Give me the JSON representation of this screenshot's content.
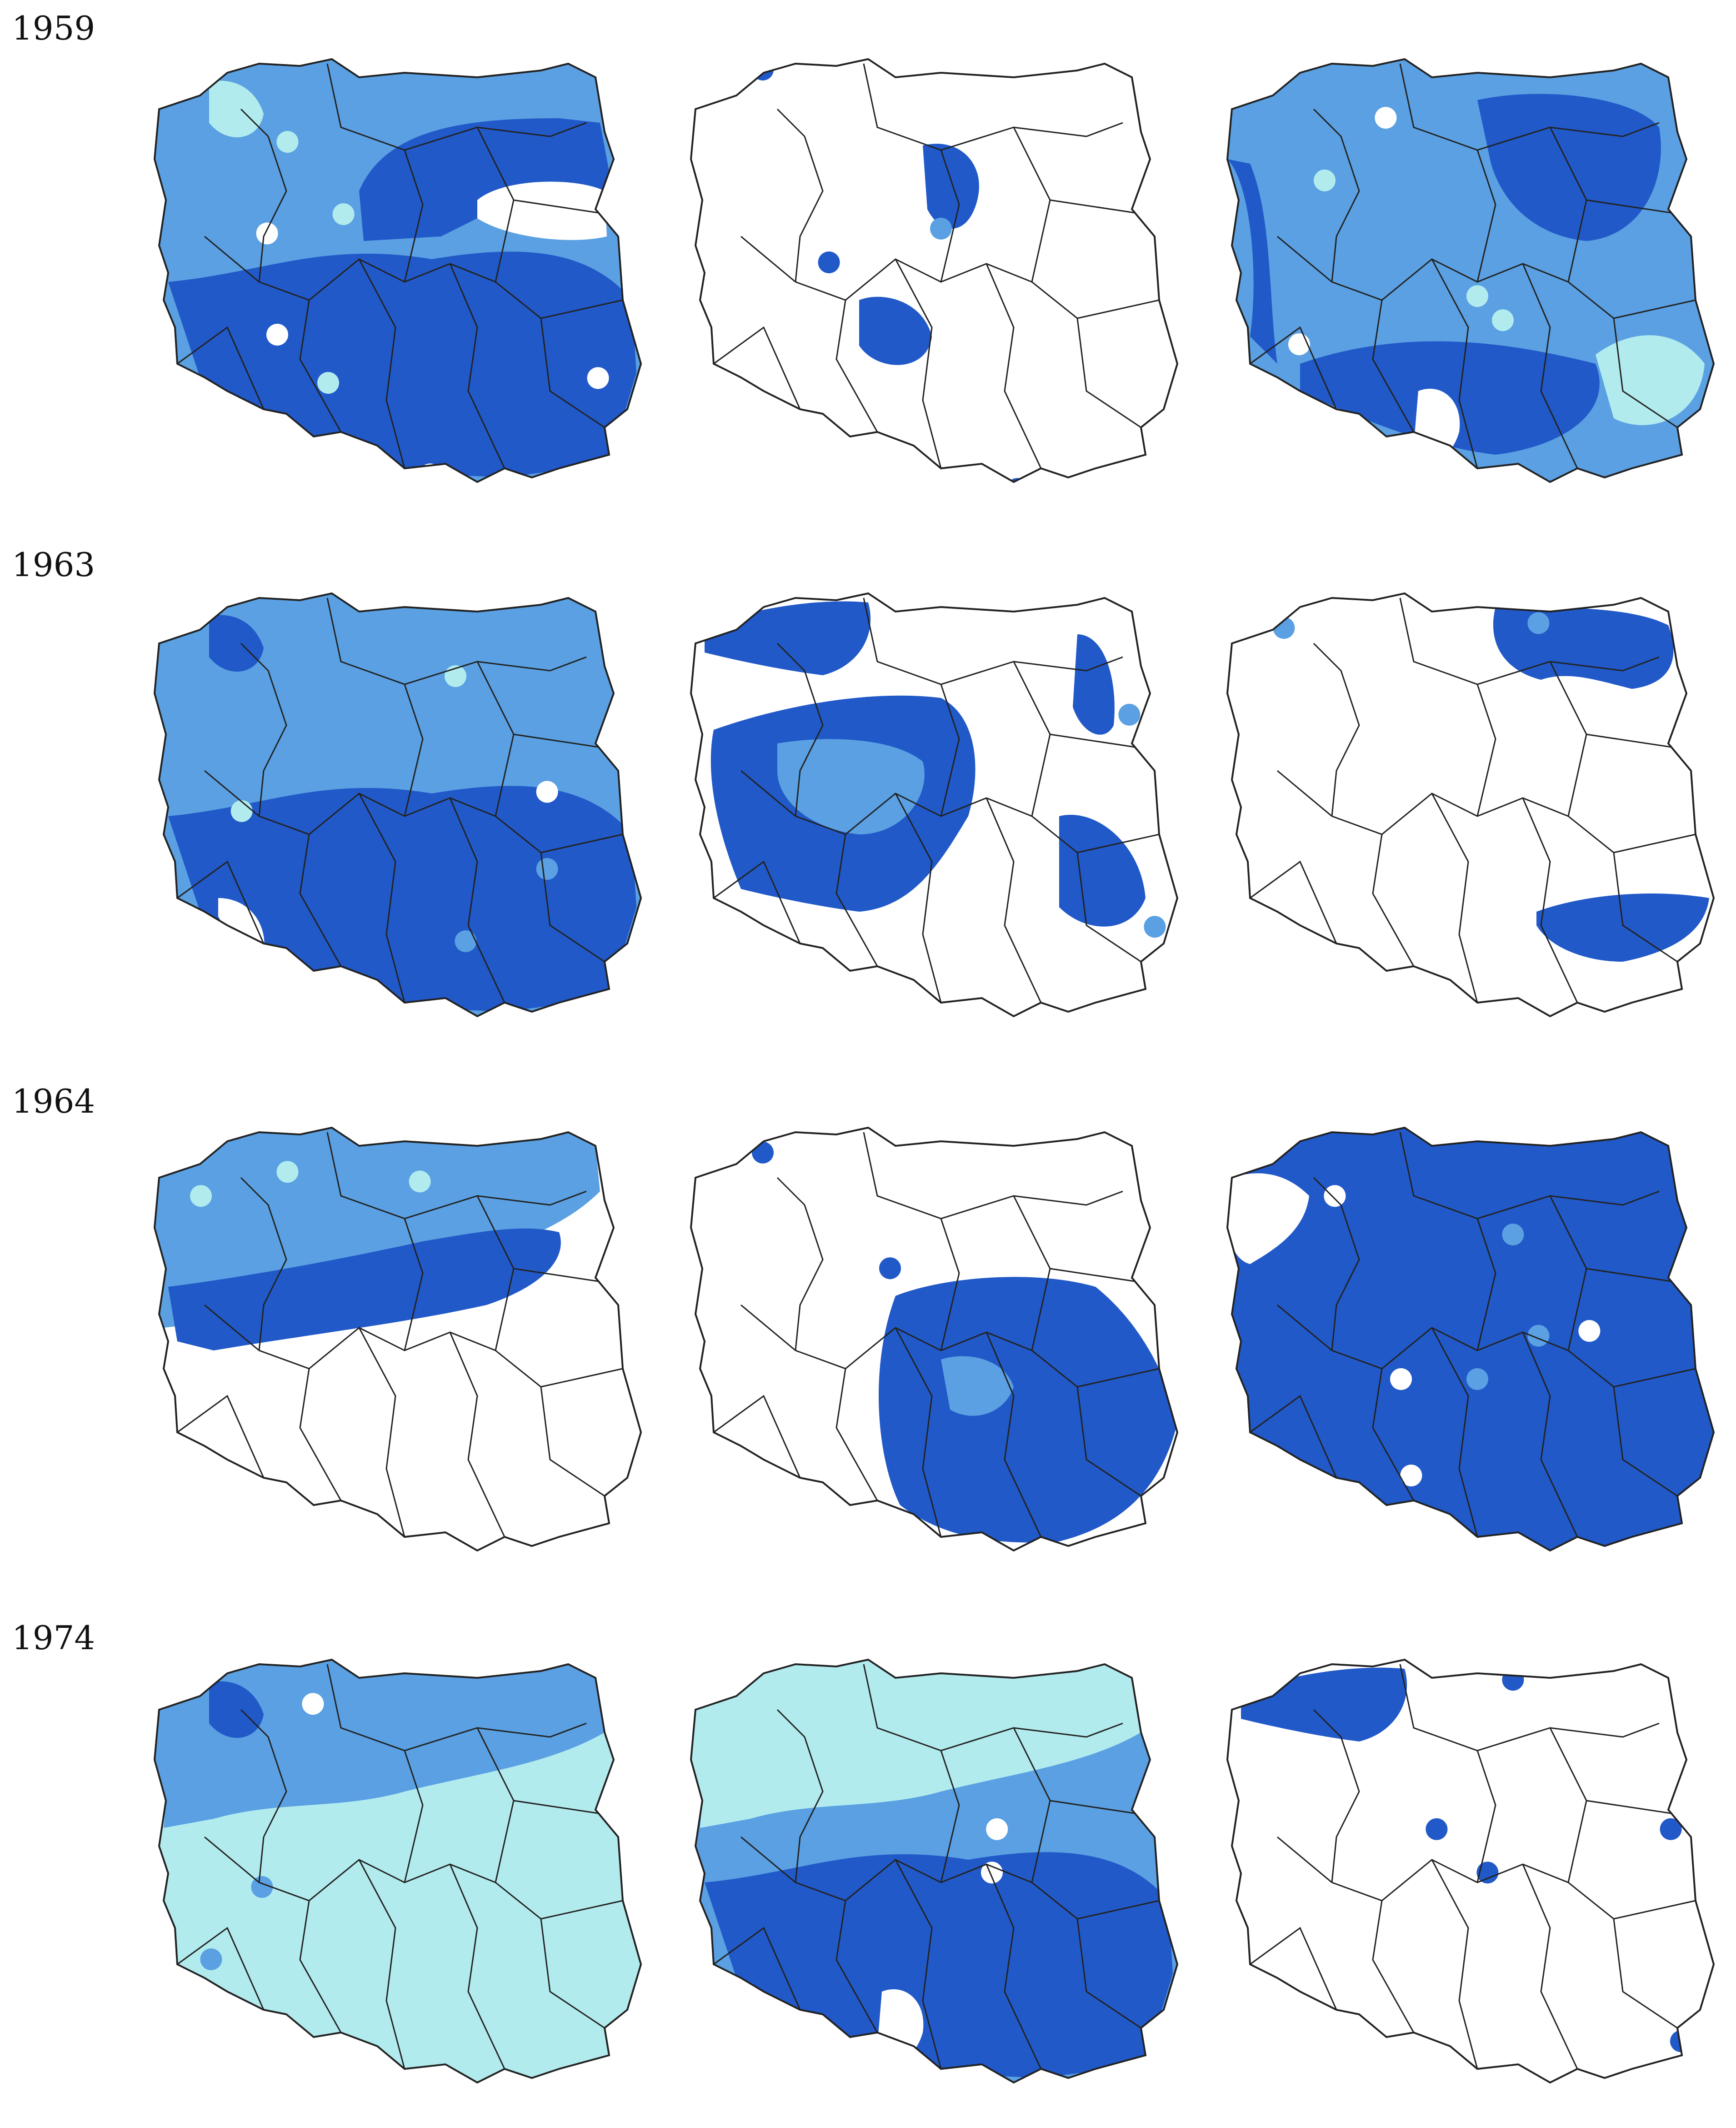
{
  "palette": {
    "background": "#ffffff",
    "class_light": "#b2ebee",
    "class_medium": "#5aa0e2",
    "class_dark": "#2159c8",
    "boundary_line": "#222222"
  },
  "rows": [
    {
      "year": "1959",
      "panels": [
        {
          "base": "class_medium",
          "blobs": [
            {
              "c": "class_dark",
              "shape": "south"
            },
            {
              "c": "class_dark",
              "shape": "east"
            },
            {
              "c": "class_light",
              "shape": "nwspot"
            },
            {
              "c": "background",
              "shape": "eastnotch"
            },
            {
              "c": "background",
              "dots": [
                [
                  0.25,
                  0.6
                ],
                [
                  0.55,
                  0.89
                ],
                [
                  0.88,
                  0.69
                ],
                [
                  0.23,
                  0.39
                ]
              ]
            },
            {
              "c": "class_light",
              "dots": [
                [
                  0.38,
                  0.35
                ],
                [
                  0.35,
                  0.7
                ],
                [
                  0.27,
                  0.2
                ]
              ]
            }
          ]
        },
        {
          "base": "background",
          "blobs": [
            {
              "c": "class_dark",
              "shape": "centralband"
            },
            {
              "c": "class_dark",
              "dots": [
                [
                  0.28,
                  0.45
                ],
                [
                  0.24,
                  0.78
                ],
                [
                  0.65,
                  0.92
                ],
                [
                  0.15,
                  0.05
                ]
              ]
            },
            {
              "c": "class_medium",
              "dots": [
                [
                  0.5,
                  0.38
                ]
              ]
            }
          ]
        },
        {
          "base": "class_medium",
          "blobs": [
            {
              "c": "class_dark",
              "shape": "eastlobe"
            },
            {
              "c": "class_dark",
              "shape": "westrim"
            },
            {
              "c": "class_dark",
              "shape": "southrim"
            },
            {
              "c": "class_light",
              "shape": "selight"
            },
            {
              "c": "background",
              "shape": "southnotch"
            },
            {
              "c": "class_light",
              "dots": [
                [
                  0.5,
                  0.52
                ],
                [
                  0.55,
                  0.57
                ],
                [
                  0.2,
                  0.28
                ]
              ]
            },
            {
              "c": "background",
              "dots": [
                [
                  0.32,
                  0.15
                ],
                [
                  0.15,
                  0.62
                ]
              ]
            }
          ]
        }
      ]
    },
    {
      "year": "1963",
      "panels": [
        {
          "base": "class_medium",
          "blobs": [
            {
              "c": "class_dark",
              "shape": "south"
            },
            {
              "c": "class_dark",
              "shape": "nwspot"
            },
            {
              "c": "background",
              "shape": "swnotch"
            },
            {
              "c": "background",
              "dots": [
                [
                  0.78,
                  0.44
                ],
                [
                  0.15,
                  0.73
                ]
              ]
            },
            {
              "c": "class_light",
              "dots": [
                [
                  0.18,
                  0.48
                ],
                [
                  0.6,
                  0.2
                ]
              ]
            },
            {
              "c": "class_medium",
              "dots": [
                [
                  0.62,
                  0.75
                ],
                [
                  0.78,
                  0.6
                ]
              ]
            }
          ]
        },
        {
          "base": "background",
          "blobs": [
            {
              "c": "class_dark",
              "shape": "westcentral"
            },
            {
              "c": "class_medium",
              "shape": "westinner"
            },
            {
              "c": "class_dark",
              "shape": "eastcolumn"
            },
            {
              "c": "class_dark",
              "shape": "nwcorner"
            },
            {
              "c": "class_medium",
              "dots": [
                [
                  0.87,
                  0.28
                ],
                [
                  0.92,
                  0.72
                ]
              ]
            },
            {
              "c": "background",
              "dots": [
                [
                  0.5,
                  0.75
                ]
              ]
            }
          ]
        },
        {
          "base": "background",
          "blobs": [
            {
              "c": "class_dark",
              "shape": "northstrip"
            },
            {
              "c": "class_dark",
              "shape": "sebar"
            },
            {
              "c": "class_medium",
              "dots": [
                [
                  0.12,
                  0.1
                ],
                [
                  0.62,
                  0.09
                ]
              ]
            }
          ]
        }
      ]
    },
    {
      "year": "1964",
      "panels": [
        {
          "base": "background",
          "blobs": [
            {
              "c": "class_medium",
              "shape": "northhalf"
            },
            {
              "c": "class_dark",
              "shape": "diag"
            },
            {
              "c": "class_light",
              "dots": [
                [
                  0.53,
                  0.14
                ],
                [
                  0.27,
                  0.12
                ],
                [
                  0.1,
                  0.17
                ]
              ]
            }
          ]
        },
        {
          "base": "background",
          "blobs": [
            {
              "c": "class_dark",
              "shape": "southeast"
            },
            {
              "c": "class_medium",
              "shape": "seinner"
            },
            {
              "c": "class_dark",
              "dots": [
                [
                  0.15,
                  0.08
                ],
                [
                  0.4,
                  0.32
                ],
                [
                  0.2,
                  0.8
                ]
              ]
            }
          ]
        },
        {
          "base": "class_dark",
          "blobs": [
            {
              "c": "background",
              "shape": "nwedge"
            },
            {
              "c": "background",
              "dots": [
                [
                  0.72,
                  0.45
                ],
                [
                  0.22,
                  0.17
                ],
                [
                  0.35,
                  0.55
                ],
                [
                  0.37,
                  0.75
                ]
              ]
            },
            {
              "c": "class_medium",
              "dots": [
                [
                  0.57,
                  0.25
                ],
                [
                  0.62,
                  0.46
                ],
                [
                  0.5,
                  0.55
                ]
              ]
            }
          ]
        }
      ]
    },
    {
      "year": "1974",
      "panels": [
        {
          "base": "class_light",
          "blobs": [
            {
              "c": "class_medium",
              "shape": "northband"
            },
            {
              "c": "class_dark",
              "shape": "nwspot"
            },
            {
              "c": "class_medium",
              "dots": [
                [
                  0.12,
                  0.65
                ],
                [
                  0.22,
                  0.5
                ]
              ]
            },
            {
              "c": "background",
              "dots": [
                [
                  0.32,
                  0.12
                ]
              ]
            }
          ]
        },
        {
          "base": "class_medium",
          "blobs": [
            {
              "c": "class_light",
              "shape": "northband"
            },
            {
              "c": "class_dark",
              "shape": "south"
            },
            {
              "c": "background",
              "shape": "southnotch"
            },
            {
              "c": "background",
              "dots": [
                [
                  0.6,
                  0.47
                ],
                [
                  0.61,
                  0.38
                ]
              ]
            }
          ]
        },
        {
          "base": "background",
          "blobs": [
            {
              "c": "class_dark",
              "shape": "nwcorner"
            },
            {
              "c": "class_dark",
              "dots": [
                [
                  0.88,
                  0.38
                ],
                [
                  0.42,
                  0.38
                ],
                [
                  0.52,
                  0.47
                ],
                [
                  0.57,
                  0.07
                ],
                [
                  0.9,
                  0.82
                ]
              ]
            }
          ]
        }
      ]
    }
  ]
}
